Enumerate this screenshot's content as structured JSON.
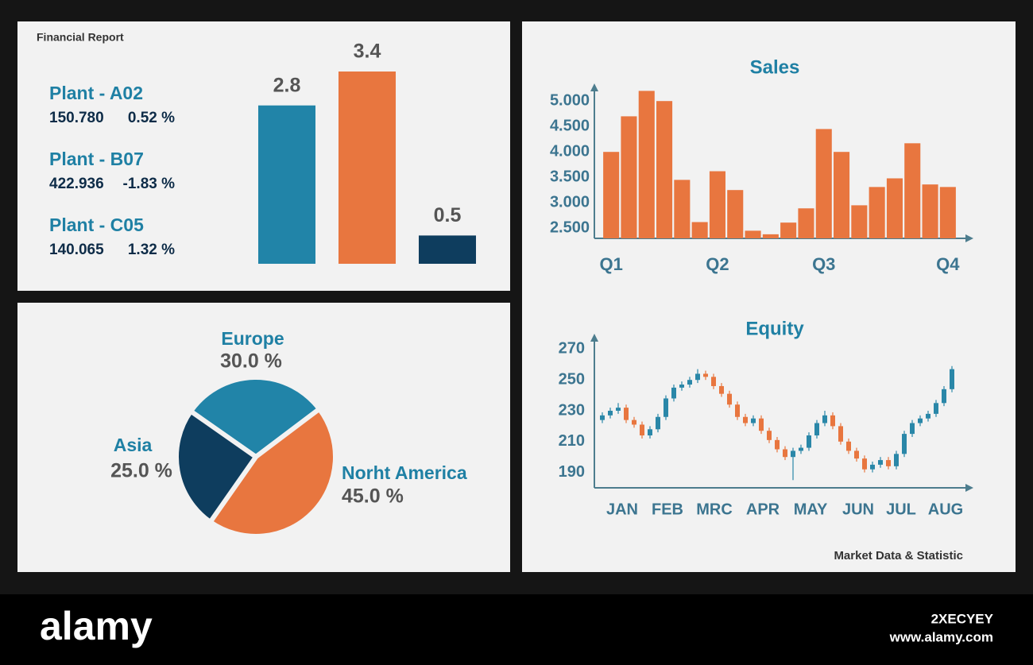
{
  "header": {
    "title": "Financial Report"
  },
  "plants": [
    {
      "name": "Plant - A02",
      "value": "150.780",
      "change": "0.52 %"
    },
    {
      "name": "Plant - B07",
      "value": "422.936",
      "change": "-1.83 %"
    },
    {
      "name": "Plant - C05",
      "value": "140.065",
      "change": "1.32 %"
    }
  ],
  "chart_data": [
    {
      "type": "bar",
      "values": [
        2.8,
        3.4,
        0.5
      ],
      "colors": [
        "#2184a8",
        "#e8763f",
        "#0e3d5e"
      ]
    },
    {
      "type": "bar",
      "title": "Sales",
      "categories": [
        "Q1",
        null,
        null,
        null,
        null,
        null,
        "Q2",
        null,
        null,
        null,
        null,
        null,
        "Q3",
        null,
        null,
        null,
        null,
        null,
        null,
        "Q4"
      ],
      "values": [
        4000,
        4700,
        5200,
        5000,
        3450,
        2620,
        3620,
        3250,
        2450,
        2380,
        2610,
        2890,
        4450,
        4000,
        2950,
        3310,
        3480,
        4170,
        3360,
        3310
      ],
      "color": "#e8763f",
      "ylim": [
        2300,
        5300
      ],
      "yticks": [
        {
          "value": 5000,
          "label": "5.000"
        },
        {
          "value": 4500,
          "label": "4.500"
        },
        {
          "value": 4000,
          "label": "4.000"
        },
        {
          "value": 3500,
          "label": "3.500"
        },
        {
          "value": 3000,
          "label": "3.000"
        },
        {
          "value": 2500,
          "label": "2.500"
        }
      ]
    },
    {
      "type": "pie",
      "categories": [
        "Europe",
        "Norht America",
        "Asia"
      ],
      "values": [
        30,
        45,
        25
      ],
      "value_labels": [
        "30.0 %",
        "45.0 %",
        "25.0 %"
      ],
      "colors": [
        "#2184a8",
        "#e8763f",
        "#0e3d5e"
      ]
    },
    {
      "type": "candlestick",
      "title": "Equity",
      "x": [
        1,
        2,
        3,
        4,
        5,
        6,
        7,
        8,
        9,
        10,
        11,
        12,
        13,
        14,
        15,
        16,
        17,
        18,
        19,
        20,
        21,
        22,
        23,
        24,
        25,
        26,
        27,
        28,
        29,
        30,
        31,
        32,
        33,
        34,
        35,
        36,
        37,
        38,
        39,
        40,
        41,
        42,
        43,
        44,
        45
      ],
      "open": [
        224,
        227,
        230,
        232,
        224,
        221,
        214,
        218,
        226,
        238,
        245,
        247,
        250,
        254,
        252,
        246,
        241,
        234,
        226,
        222,
        225,
        217,
        211,
        205,
        200,
        204,
        206,
        214,
        222,
        227,
        220,
        210,
        204,
        199,
        192,
        195,
        198,
        194,
        202,
        215,
        222,
        225,
        228,
        235,
        244
      ],
      "high": [
        229,
        232,
        235,
        234,
        226,
        223,
        220,
        228,
        240,
        247,
        249,
        252,
        257,
        256,
        254,
        248,
        243,
        236,
        228,
        227,
        227,
        219,
        213,
        207,
        206,
        208,
        216,
        224,
        230,
        229,
        222,
        212,
        206,
        201,
        197,
        200,
        200,
        204,
        217,
        224,
        227,
        230,
        237,
        246,
        259
      ],
      "low": [
        222,
        225,
        228,
        222,
        219,
        212,
        212,
        216,
        224,
        236,
        243,
        245,
        248,
        250,
        244,
        239,
        232,
        224,
        220,
        220,
        215,
        209,
        203,
        198,
        185,
        202,
        204,
        212,
        220,
        218,
        208,
        202,
        197,
        190,
        190,
        193,
        192,
        192,
        200,
        213,
        220,
        223,
        226,
        233,
        242
      ],
      "close": [
        227,
        230,
        232,
        224,
        221,
        214,
        218,
        226,
        238,
        245,
        247,
        250,
        254,
        252,
        246,
        241,
        234,
        226,
        222,
        225,
        217,
        211,
        205,
        200,
        204,
        206,
        214,
        222,
        227,
        220,
        210,
        204,
        199,
        192,
        195,
        198,
        194,
        202,
        215,
        222,
        225,
        228,
        235,
        244,
        257
      ],
      "up_color": "#2a87a8",
      "down_color": "#e8763f",
      "xlim": [
        0,
        47.7
      ],
      "xticks": [
        {
          "value": 3.5,
          "label": "JAN"
        },
        {
          "value": 9.2,
          "label": "FEB"
        },
        {
          "value": 15.1,
          "label": "MRC"
        },
        {
          "value": 21.2,
          "label": "APR"
        },
        {
          "value": 27.2,
          "label": "MAY"
        },
        {
          "value": 33.2,
          "label": "JUN"
        },
        {
          "value": 38.6,
          "label": "JUL"
        },
        {
          "value": 44.2,
          "label": "AUG"
        }
      ],
      "ylim": [
        180,
        280
      ],
      "yticks": [
        270,
        250,
        230,
        210,
        190
      ]
    }
  ],
  "footer_note": "Market Data & Statistic",
  "watermark": {
    "brand": "alamy",
    "image_id": "2XECYEY",
    "url": "www.alamy.com"
  }
}
